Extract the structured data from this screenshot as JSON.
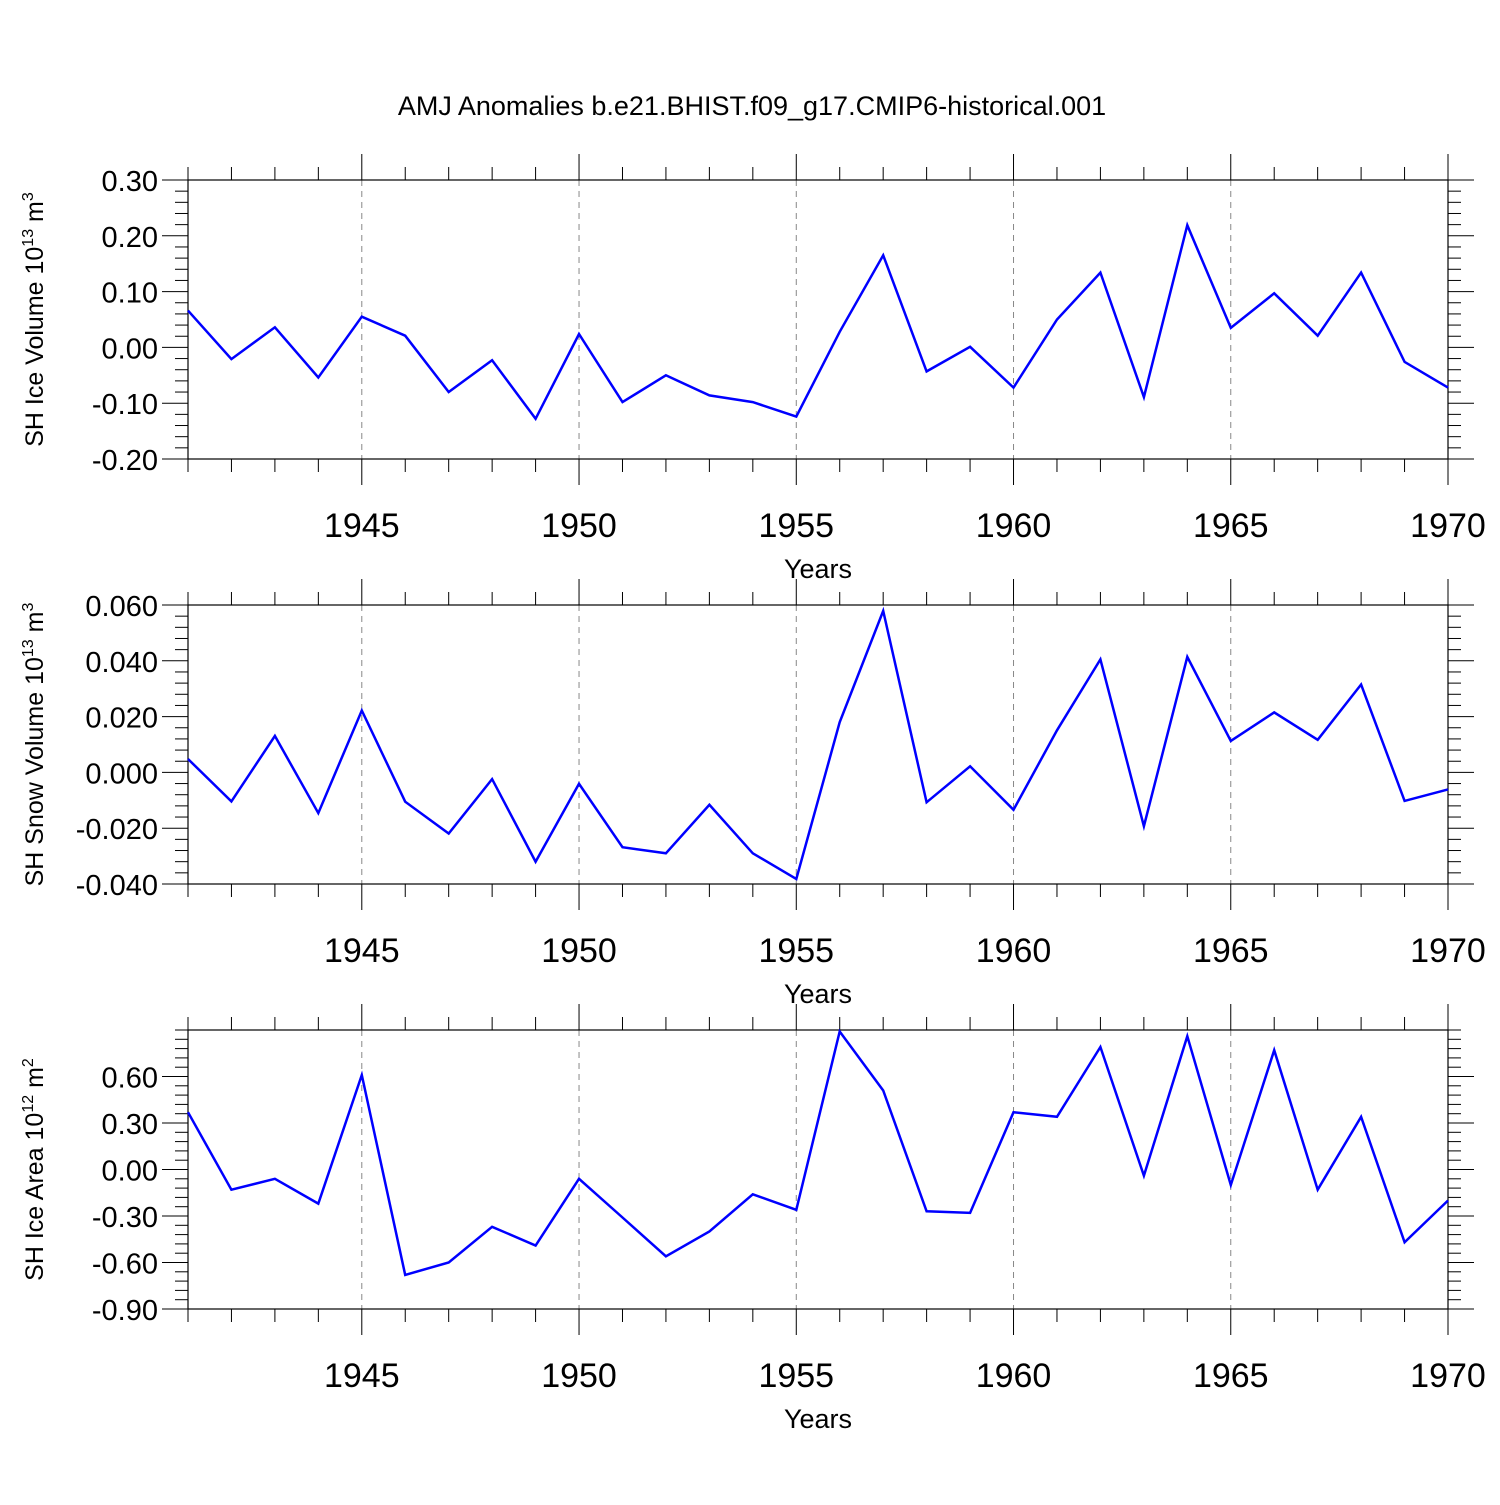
{
  "title": "AMJ Anomalies b.e21.BHIST.f09_g17.CMIP6-historical.001",
  "colors": {
    "line": "#0000ff",
    "axis": "#000000",
    "grid": "#888888"
  },
  "chart_data": [
    {
      "type": "line",
      "title": "AMJ Anomalies b.e21.BHIST.f09_g17.CMIP6-historical.001",
      "ylabel": {
        "text": "SH Ice Volume 10",
        "exp": "13",
        "unit": " m",
        "unitExp": "3"
      },
      "xlabel": "Years",
      "xlim": [
        1941,
        1970
      ],
      "ylim": [
        -0.2,
        0.3
      ],
      "xticks": [
        1945,
        1950,
        1955,
        1960,
        1965,
        1970
      ],
      "yticks": [
        -0.2,
        -0.1,
        0.0,
        0.1,
        0.2,
        0.3
      ],
      "ytick_labels": [
        "-0.20",
        "-0.10",
        "0.00",
        "0.10",
        "0.20",
        "0.30"
      ],
      "grid": "vertical dashed at major x ticks",
      "series": [
        {
          "x": [
            1941,
            1942,
            1943,
            1944,
            1945,
            1946,
            1947,
            1948,
            1949,
            1950,
            1951,
            1952,
            1953,
            1954,
            1955,
            1956,
            1957,
            1958,
            1959,
            1960,
            1961,
            1962,
            1963,
            1964,
            1965,
            1966,
            1967,
            1968,
            1969,
            1970
          ],
          "values": [
            0.066,
            -0.021,
            0.036,
            -0.054,
            0.055,
            0.021,
            -0.08,
            -0.023,
            -0.128,
            0.024,
            -0.098,
            -0.05,
            -0.086,
            -0.098,
            -0.124,
            0.028,
            0.165,
            -0.043,
            0.001,
            -0.072,
            0.05,
            0.134,
            -0.089,
            0.219,
            0.035,
            0.097,
            0.021,
            0.134,
            -0.026,
            -0.072
          ]
        }
      ]
    },
    {
      "type": "line",
      "ylabel": {
        "text": "SH Snow Volume 10",
        "exp": "13",
        "unit": " m",
        "unitExp": "3"
      },
      "xlabel": "Years",
      "xlim": [
        1941,
        1970
      ],
      "ylim": [
        -0.04,
        0.06
      ],
      "xticks": [
        1945,
        1950,
        1955,
        1960,
        1965,
        1970
      ],
      "yticks": [
        -0.04,
        -0.02,
        0.0,
        0.02,
        0.04,
        0.06
      ],
      "ytick_labels": [
        "-0.040",
        "-0.020",
        "0.000",
        "0.020",
        "0.040",
        "0.060"
      ],
      "grid": "vertical dashed at major x ticks",
      "series": [
        {
          "x": [
            1941,
            1942,
            1943,
            1944,
            1945,
            1946,
            1947,
            1948,
            1949,
            1950,
            1951,
            1952,
            1953,
            1954,
            1955,
            1956,
            1957,
            1958,
            1959,
            1960,
            1961,
            1962,
            1963,
            1964,
            1965,
            1966,
            1967,
            1968,
            1969,
            1970
          ],
          "values": [
            0.0048,
            -0.0104,
            0.0131,
            -0.0146,
            0.0222,
            -0.0105,
            -0.0219,
            -0.0024,
            -0.032,
            -0.0041,
            -0.0268,
            -0.029,
            -0.0116,
            -0.029,
            -0.0382,
            0.018,
            0.0579,
            -0.0107,
            0.0022,
            -0.0134,
            0.0151,
            0.0405,
            -0.0193,
            0.0414,
            0.0113,
            0.0215,
            0.0117,
            0.0315,
            -0.0102,
            -0.0061
          ]
        }
      ]
    },
    {
      "type": "line",
      "ylabel": {
        "text": "SH Ice Area 10",
        "exp": "12",
        "unit": " m",
        "unitExp": "2"
      },
      "xlabel": "Years",
      "xlim": [
        1941,
        1970
      ],
      "ylim": [
        -0.9,
        0.9
      ],
      "xticks": [
        1945,
        1950,
        1955,
        1960,
        1965,
        1970
      ],
      "yticks": [
        -0.9,
        -0.6,
        -0.3,
        0.0,
        0.3,
        0.6
      ],
      "ytick_labels": [
        "-0.90",
        "-0.60",
        "-0.30",
        "0.00",
        "0.30",
        "0.60"
      ],
      "grid": "vertical dashed at major x ticks",
      "series": [
        {
          "x": [
            1941,
            1942,
            1943,
            1944,
            1945,
            1946,
            1947,
            1948,
            1949,
            1950,
            1951,
            1952,
            1953,
            1954,
            1955,
            1956,
            1957,
            1958,
            1959,
            1960,
            1961,
            1962,
            1963,
            1964,
            1965,
            1966,
            1967,
            1968,
            1969,
            1970
          ],
          "values": [
            0.37,
            -0.13,
            -0.06,
            -0.22,
            0.61,
            -0.68,
            -0.6,
            -0.37,
            -0.49,
            -0.06,
            -0.31,
            -0.56,
            -0.4,
            -0.16,
            -0.26,
            0.89,
            0.51,
            -0.27,
            -0.28,
            0.37,
            0.34,
            0.79,
            -0.04,
            0.86,
            -0.1,
            0.77,
            -0.13,
            0.34,
            -0.47,
            -0.2
          ]
        }
      ]
    }
  ]
}
